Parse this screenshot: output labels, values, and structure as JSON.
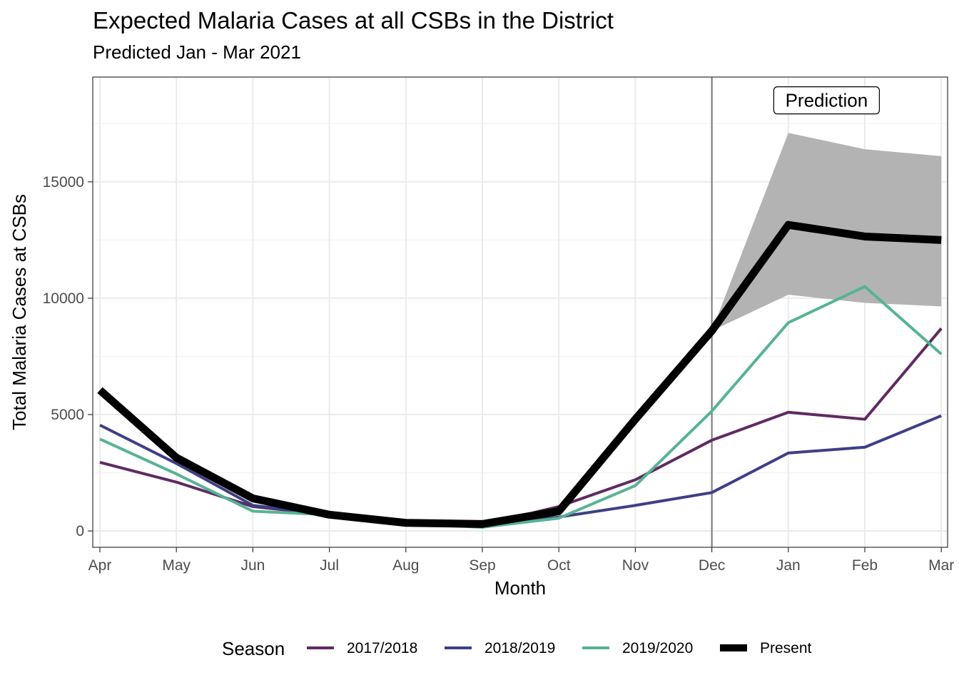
{
  "chart_data": {
    "type": "line",
    "title": "Expected Malaria Cases at all CSBs in the District",
    "subtitle": "Predicted Jan - Mar 2021",
    "xlabel": "Month",
    "ylabel": "Total Malaria Cases at CSBs",
    "categories": [
      "Apr",
      "May",
      "Jun",
      "Jul",
      "Aug",
      "Sep",
      "Oct",
      "Nov",
      "Dec",
      "Jan",
      "Feb",
      "Mar"
    ],
    "ylim": [
      -700,
      19500
    ],
    "yticks": [
      0,
      5000,
      10000,
      15000
    ],
    "grid": true,
    "legend_title": "Season",
    "legend_position": "bottom",
    "series": [
      {
        "name": "2017/2018",
        "color": "#5e2b62",
        "values": [
          2950,
          2100,
          1050,
          700,
          350,
          250,
          1050,
          2200,
          3900,
          5100,
          4800,
          8700
        ]
      },
      {
        "name": "2018/2019",
        "color": "#3e3f86",
        "values": [
          4550,
          2900,
          1100,
          700,
          330,
          230,
          600,
          1100,
          1650,
          3350,
          3600,
          4950
        ]
      },
      {
        "name": "2019/2020",
        "color": "#57b394",
        "values": [
          3950,
          2450,
          850,
          700,
          320,
          160,
          550,
          1950,
          5150,
          8950,
          10500,
          7600
        ]
      },
      {
        "name": "Present",
        "color": "#000000",
        "values": [
          6050,
          3150,
          1400,
          700,
          350,
          300,
          850,
          4800,
          8600,
          13150,
          12650,
          12500
        ]
      }
    ],
    "prediction_band": {
      "categories": [
        "Dec",
        "Jan",
        "Feb",
        "Mar"
      ],
      "lower": [
        8600,
        10150,
        9800,
        9650
      ],
      "upper": [
        8600,
        17100,
        16400,
        16100
      ],
      "color": "#b3b3b3"
    },
    "vertical_line": {
      "at": "Dec",
      "color": "#808080"
    },
    "annotation": {
      "text": "Prediction",
      "at": "Jan",
      "x_offset": 0.5,
      "y": 18500
    }
  }
}
